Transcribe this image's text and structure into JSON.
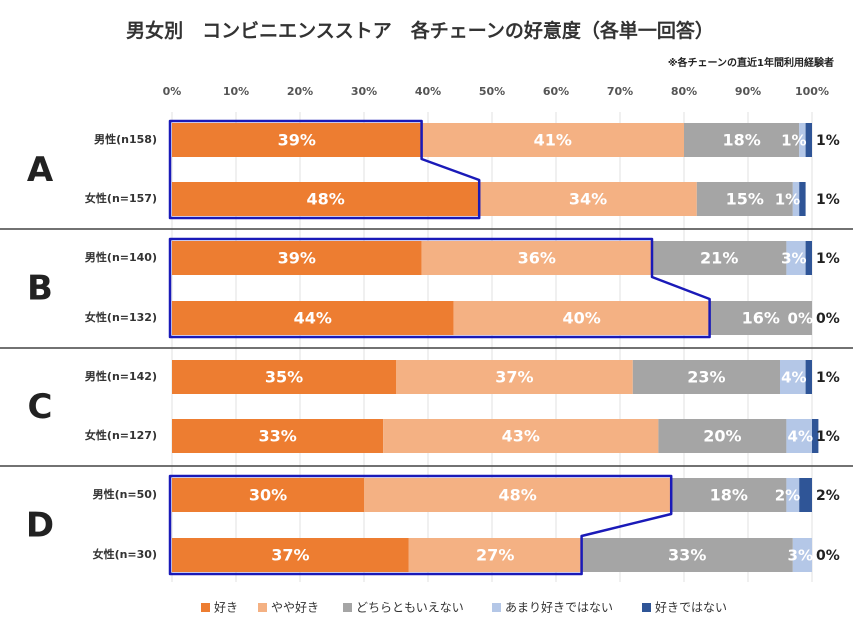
{
  "chart_data": {
    "type": "bar",
    "orientation": "horizontal",
    "stacked": true,
    "title": "男女別　コンビニエンスストア　各チェーンの好意度（各単一回答）",
    "note": "※各チェーンの直近1年間利用経験者",
    "x_ticks": [
      "0%",
      "10%",
      "20%",
      "30%",
      "40%",
      "50%",
      "60%",
      "70%",
      "80%",
      "90%",
      "100%"
    ],
    "xlim": [
      0,
      100
    ],
    "legend_position": "bottom",
    "series": [
      {
        "name": "好き",
        "color": "#ED7D31"
      },
      {
        "name": "やや好き",
        "color": "#F4B183"
      },
      {
        "name": "どちらともいえない",
        "color": "#A5A5A5"
      },
      {
        "name": "あまり好きではない",
        "color": "#B4C7E7"
      },
      {
        "name": "好きではない",
        "color": "#2F5597"
      }
    ],
    "groups": [
      {
        "name": "A",
        "rows": [
          {
            "label": "男性(n158)",
            "values": [
              39,
              41,
              18,
              1,
              1
            ],
            "labels": [
              "39%",
              "41%",
              "18%",
              "1%",
              "1%"
            ]
          },
          {
            "label": "女性(n=157)",
            "values": [
              48,
              34,
              15,
              1,
              1
            ],
            "labels": [
              "48%",
              "34%",
              "15%",
              "1%",
              "1%"
            ]
          }
        ]
      },
      {
        "name": "B",
        "rows": [
          {
            "label": "男性(n=140)",
            "values": [
              39,
              36,
              21,
              3,
              1
            ],
            "labels": [
              "39%",
              "36%",
              "21%",
              "3%",
              "1%"
            ]
          },
          {
            "label": "女性(n=132)",
            "values": [
              44,
              40,
              16,
              0,
              0
            ],
            "labels": [
              "44%",
              "40%",
              "16%",
              "0%",
              "0%"
            ]
          }
        ]
      },
      {
        "name": "C",
        "rows": [
          {
            "label": "男性(n=142)",
            "values": [
              35,
              37,
              23,
              4,
              1
            ],
            "labels": [
              "35%",
              "37%",
              "23%",
              "4%",
              "1%"
            ]
          },
          {
            "label": "女性(n=127)",
            "values": [
              33,
              43,
              20,
              4,
              1
            ],
            "labels": [
              "33%",
              "43%",
              "20%",
              "4%",
              "1%"
            ]
          }
        ]
      },
      {
        "name": "D",
        "rows": [
          {
            "label": "男性(n=50)",
            "values": [
              30,
              48,
              18,
              2,
              2
            ],
            "labels": [
              "30%",
              "48%",
              "18%",
              "2%",
              "2%"
            ]
          },
          {
            "label": "女性(n=30)",
            "values": [
              37,
              27,
              33,
              3,
              0
            ],
            "labels": [
              "37%",
              "27%",
              "33%",
              "3%",
              "0%"
            ]
          }
        ]
      }
    ],
    "highlights": [
      {
        "group": "A",
        "male_to": 39,
        "female_to": 48
      },
      {
        "group": "B",
        "male_to": 75,
        "female_to": 84
      },
      {
        "group": "D",
        "male_to": 78,
        "female_to": 64
      }
    ]
  }
}
